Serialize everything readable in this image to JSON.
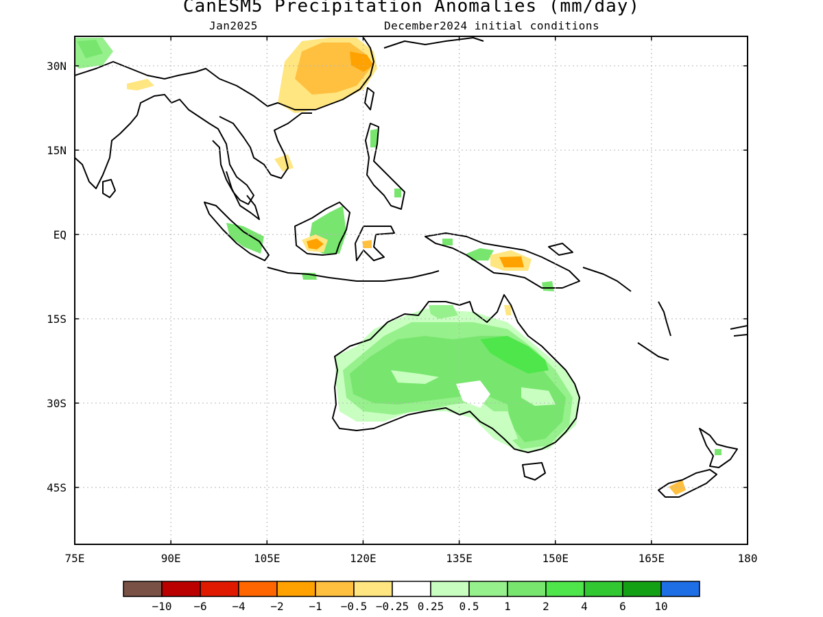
{
  "title": "CanESM5 Precipitation Anomalies (mm/day)",
  "subtitle_left": "Jan2025",
  "subtitle_right": "December2024 initial conditions",
  "map": {
    "lon_range": [
      75,
      180
    ],
    "lat_range": [
      -55,
      35
    ],
    "lon_ticks": [
      {
        "value": 75,
        "label": "75E"
      },
      {
        "value": 90,
        "label": "90E"
      },
      {
        "value": 105,
        "label": "105E"
      },
      {
        "value": 120,
        "label": "120E"
      },
      {
        "value": 135,
        "label": "135E"
      },
      {
        "value": 150,
        "label": "150E"
      },
      {
        "value": 165,
        "label": "165E"
      },
      {
        "value": 180,
        "label": "180"
      }
    ],
    "lat_ticks": [
      {
        "value": 30,
        "label": "30N"
      },
      {
        "value": 15,
        "label": "15N"
      },
      {
        "value": 0,
        "label": "EQ"
      },
      {
        "value": -15,
        "label": "15S"
      },
      {
        "value": -30,
        "label": "30S"
      },
      {
        "value": -45,
        "label": "45S"
      }
    ],
    "grid": true
  },
  "colorbar": {
    "colors": [
      "#7a5145",
      "#bb0000",
      "#e01a00",
      "#ff6600",
      "#ffa200",
      "#ffc040",
      "#ffe680",
      "#ffffff",
      "#c8ffc0",
      "#96f08c",
      "#78e66e",
      "#4ee64a",
      "#32c832",
      "#14a014",
      "#1e6ee6"
    ],
    "labels": [
      "-10",
      "-6",
      "-4",
      "-2",
      "-1",
      "-0.5",
      "-0.25",
      "0.25",
      "0.5",
      "1",
      "2",
      "4",
      "6",
      "10"
    ]
  }
}
